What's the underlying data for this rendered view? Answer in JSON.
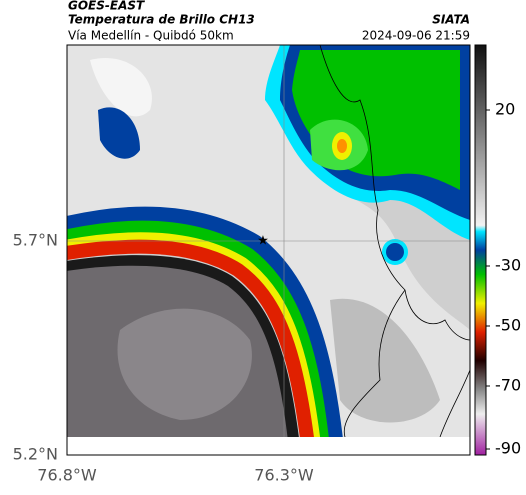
{
  "header": {
    "source": "GOES-EAST",
    "product": "Temperatura de Brillo CH13",
    "route": "Vía Medellín - Quibdó 50km",
    "brand": "SIATA",
    "timestamp": "2024-09-06 21:59"
  },
  "axes": {
    "lat_labels": [
      "5.7°N",
      "5.2°N"
    ],
    "lon_labels": [
      "76.8°W",
      "76.3°W"
    ]
  },
  "colorbar": {
    "tick_labels": [
      "20",
      "-30",
      "-50",
      "-70",
      "-90"
    ]
  }
}
